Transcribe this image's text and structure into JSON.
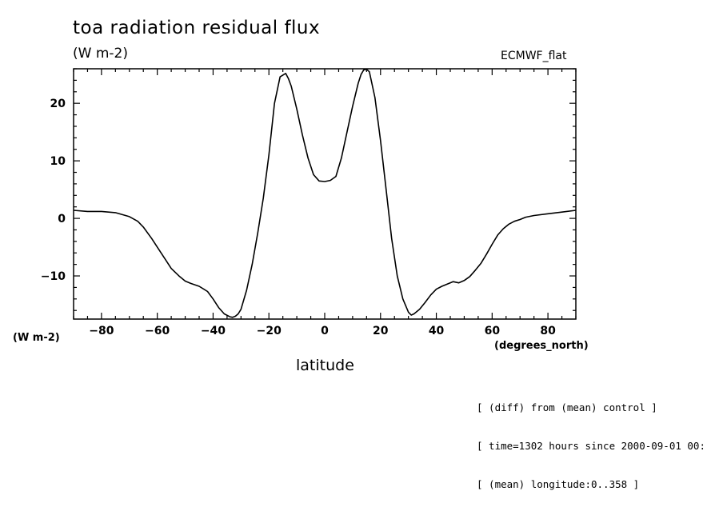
{
  "header": {
    "title": "toa radiation residual flux",
    "units": "(W m-2)",
    "dataset": "ECMWF_flat",
    "units_left": "(W m-2)",
    "x_units": "(degrees_north)"
  },
  "notes": [
    "[ (diff) from (mean) control ]",
    "[ time=1302 hours since 2000-09-01 00:",
    "[ (mean) longitude:0..358 ]"
  ],
  "chart_data": {
    "type": "line",
    "title": "toa radiation residual flux",
    "xlabel": "latitude",
    "ylabel": "(W m-2)",
    "xlim": [
      -90,
      90
    ],
    "ylim": [
      -17.5,
      26
    ],
    "x_ticks": [
      -80,
      -60,
      -40,
      -20,
      0,
      20,
      40,
      60,
      80
    ],
    "y_ticks": [
      -10,
      0,
      10,
      20
    ],
    "grid": false,
    "series": [
      {
        "x": [
          -90,
          -85,
          -80,
          -75,
          -70,
          -67,
          -65,
          -62,
          -60,
          -57,
          -55,
          -52,
          -50,
          -48,
          -45,
          -42,
          -40,
          -38,
          -36,
          -34,
          -33,
          -32,
          -31,
          -30,
          -28,
          -26,
          -24,
          -22,
          -20,
          -18,
          -16,
          -14,
          -13,
          -12,
          -10,
          -8,
          -6,
          -4,
          -2,
          0,
          2,
          4,
          6,
          8,
          10,
          12,
          13,
          14,
          15,
          16,
          18,
          20,
          22,
          24,
          26,
          28,
          30,
          31,
          32,
          34,
          36,
          38,
          40,
          42,
          44,
          46,
          48,
          50,
          52,
          54,
          56,
          58,
          60,
          62,
          64,
          66,
          68,
          70,
          72,
          75,
          80,
          85,
          90
        ],
        "values": [
          1.4,
          1.2,
          1.2,
          1.0,
          0.3,
          -0.5,
          -1.5,
          -3.5,
          -5.0,
          -7.2,
          -8.7,
          -10.1,
          -10.9,
          -11.3,
          -11.8,
          -12.7,
          -14.0,
          -15.5,
          -16.6,
          -17.1,
          -17.2,
          -17.0,
          -16.6,
          -15.8,
          -12.5,
          -8.0,
          -2.5,
          3.5,
          11.0,
          20.0,
          24.6,
          25.2,
          24.3,
          23.0,
          19.0,
          14.5,
          10.5,
          7.6,
          6.5,
          6.4,
          6.6,
          7.3,
          10.5,
          15.0,
          19.5,
          23.5,
          25.0,
          25.8,
          25.9,
          25.5,
          21.0,
          13.5,
          5.0,
          -3.5,
          -10.0,
          -14.0,
          -16.3,
          -16.8,
          -16.6,
          -15.8,
          -14.6,
          -13.3,
          -12.3,
          -11.8,
          -11.4,
          -11.0,
          -11.2,
          -10.8,
          -10.1,
          -9.0,
          -7.8,
          -6.2,
          -4.5,
          -2.9,
          -1.8,
          -1.0,
          -0.5,
          -0.2,
          0.2,
          0.5,
          0.8,
          1.1,
          1.4
        ]
      }
    ]
  }
}
